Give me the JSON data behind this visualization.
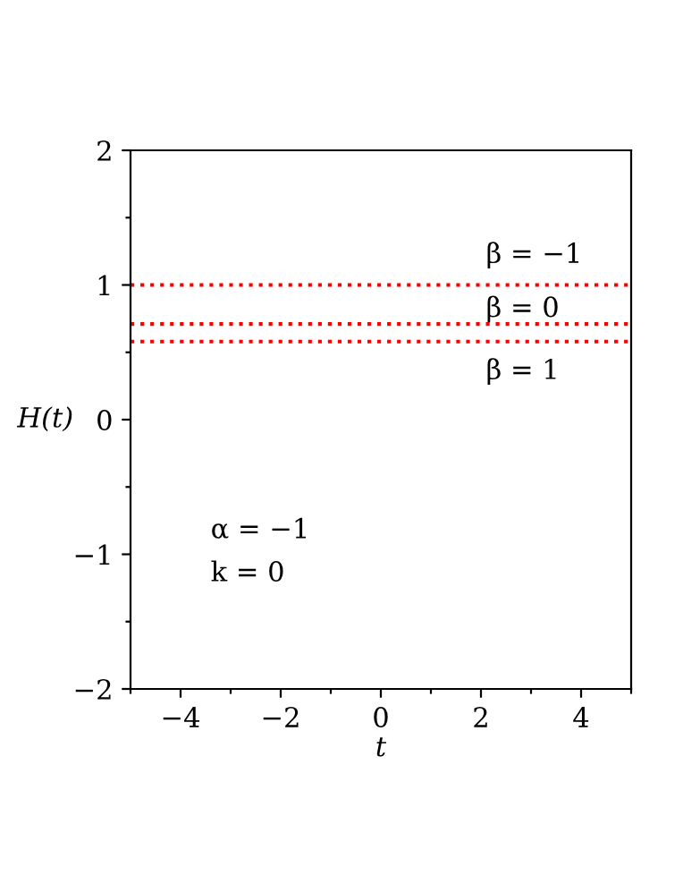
{
  "chart_data": {
    "type": "line",
    "xlabel": "t",
    "ylabel": "H(t)",
    "x": [
      -5,
      5
    ],
    "series": [
      {
        "color": "#ff0000",
        "values": [
          1,
          1
        ]
      },
      {
        "color": "#ff0000",
        "values": [
          0.71,
          0.71
        ]
      },
      {
        "color": "#ff0000",
        "values": [
          0.58,
          0.58
        ]
      }
    ],
    "line_style": "dotted",
    "marker": "none",
    "grid": false,
    "legend": false,
    "xlim": [
      -5,
      5
    ],
    "ylim": [
      -2,
      2
    ],
    "xticks": [
      {
        "value": -5,
        "label": null
      },
      -4,
      {
        "value": -3,
        "label": null
      },
      -2,
      {
        "value": -1,
        "label": null
      },
      0,
      {
        "value": 1,
        "label": null
      },
      2,
      {
        "value": 3,
        "label": null
      },
      4,
      {
        "value": 5,
        "label": null
      }
    ],
    "yticks": [
      -2,
      {
        "value": -1.5,
        "label": null
      },
      -1,
      {
        "value": -0.5,
        "label": null
      },
      0,
      {
        "value": 0.5,
        "label": null
      },
      1,
      {
        "value": 1.5,
        "label": null
      },
      2
    ],
    "annotations": [
      "β = −1",
      "β = 0",
      "β = 1",
      "α = −1",
      "k = 0"
    ]
  }
}
